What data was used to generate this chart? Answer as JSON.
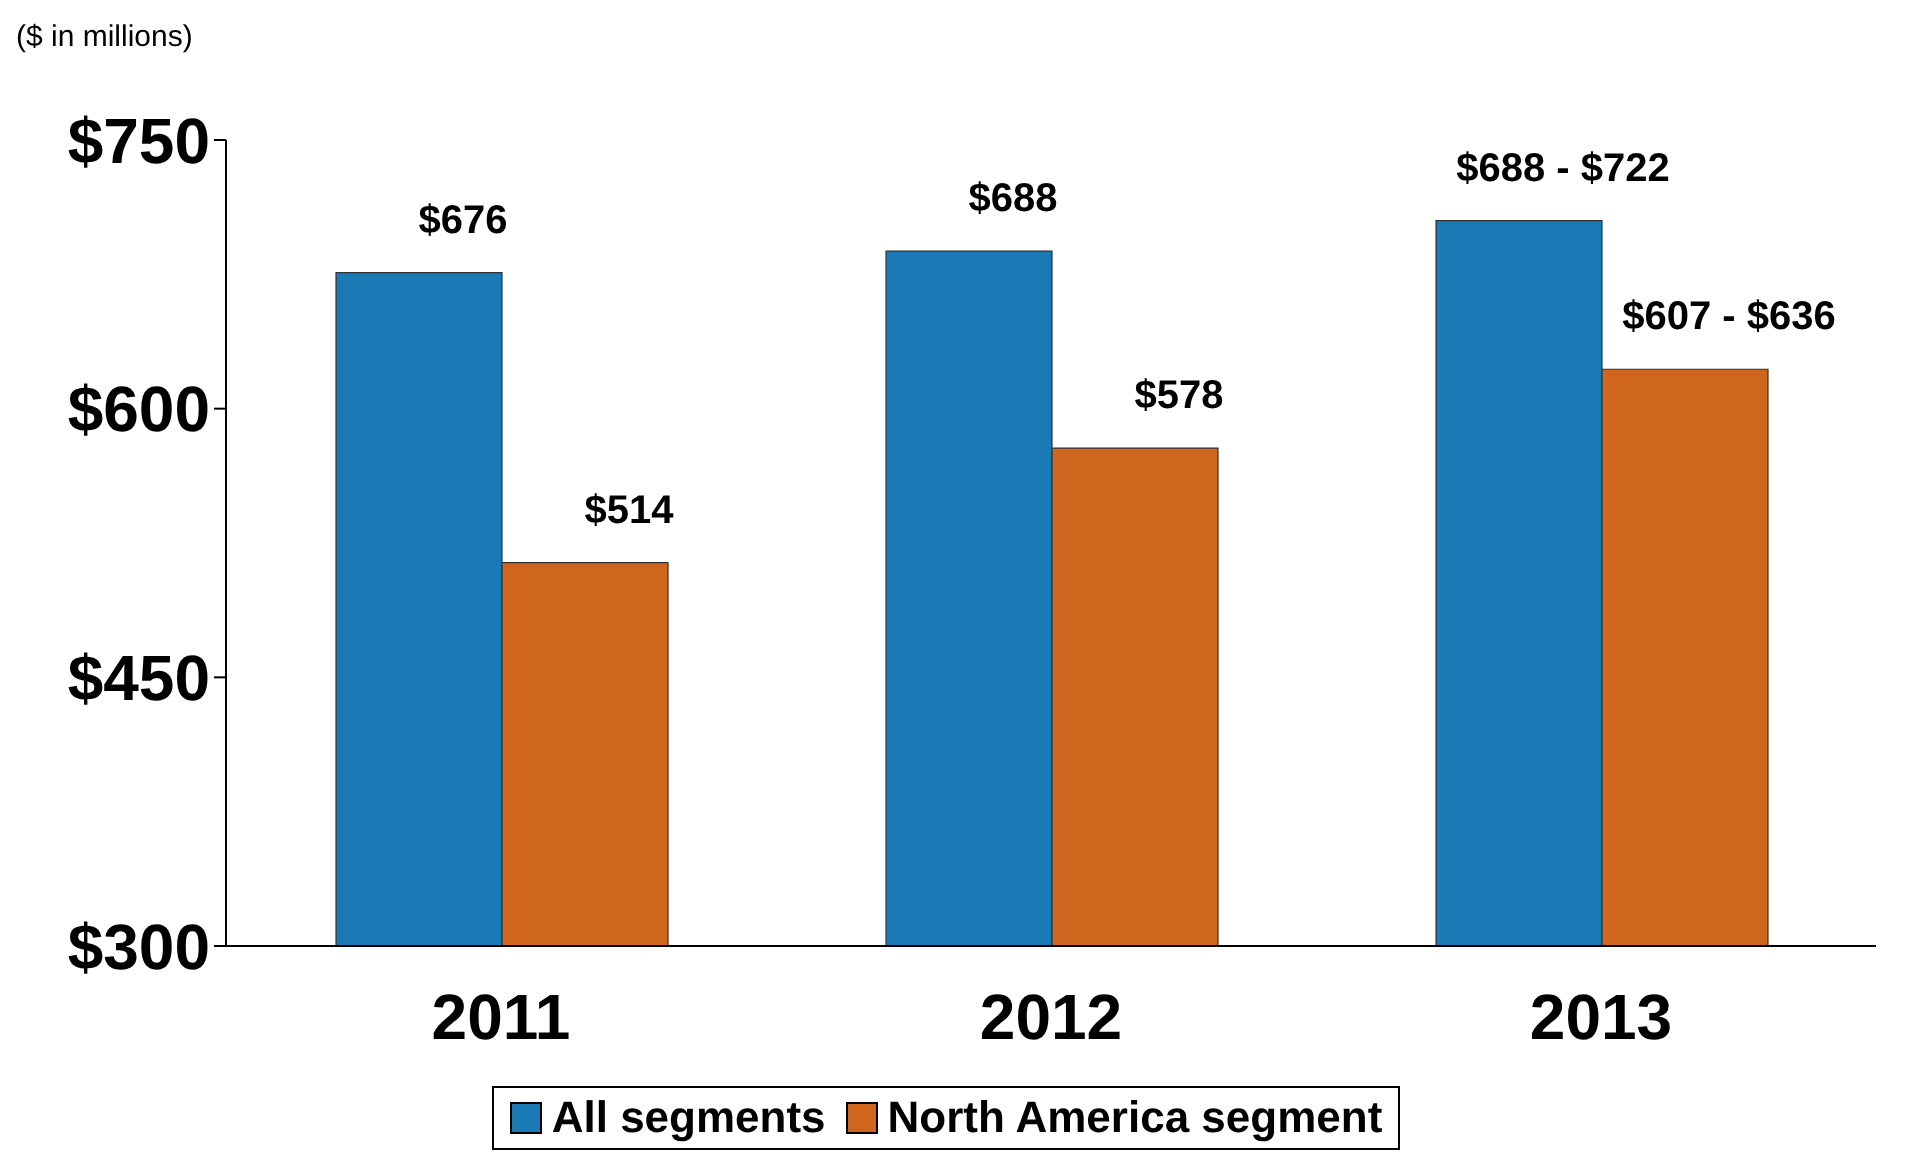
{
  "chart_data": {
    "type": "bar",
    "annotations": [
      "($ in millions)",
      {
        "text": "$688 - $722",
        "x": "2013",
        "y": 705
      },
      {
        "text": "$607 - $636",
        "x": "2013",
        "y": 622
      }
    ],
    "categories": [
      "2011",
      "2012",
      "2013"
    ],
    "series": [
      {
        "name": "All segments",
        "color": "#1a7ab5",
        "values": [
          676,
          688,
          705
        ],
        "value_labels": [
          "$676",
          "$688",
          null
        ]
      },
      {
        "name": "North America segment",
        "color": "#d0661e",
        "values": [
          514,
          578,
          622
        ],
        "value_labels": [
          "$514",
          "$578",
          null
        ]
      }
    ],
    "ylim": [
      300,
      750
    ],
    "yticks": [
      {
        "value": 300,
        "label": "$300"
      },
      {
        "value": 450,
        "label": "$450"
      },
      {
        "value": 600,
        "label": "$600"
      },
      {
        "value": 750,
        "label": "$750"
      }
    ],
    "grid": false,
    "legend": "bottom"
  }
}
